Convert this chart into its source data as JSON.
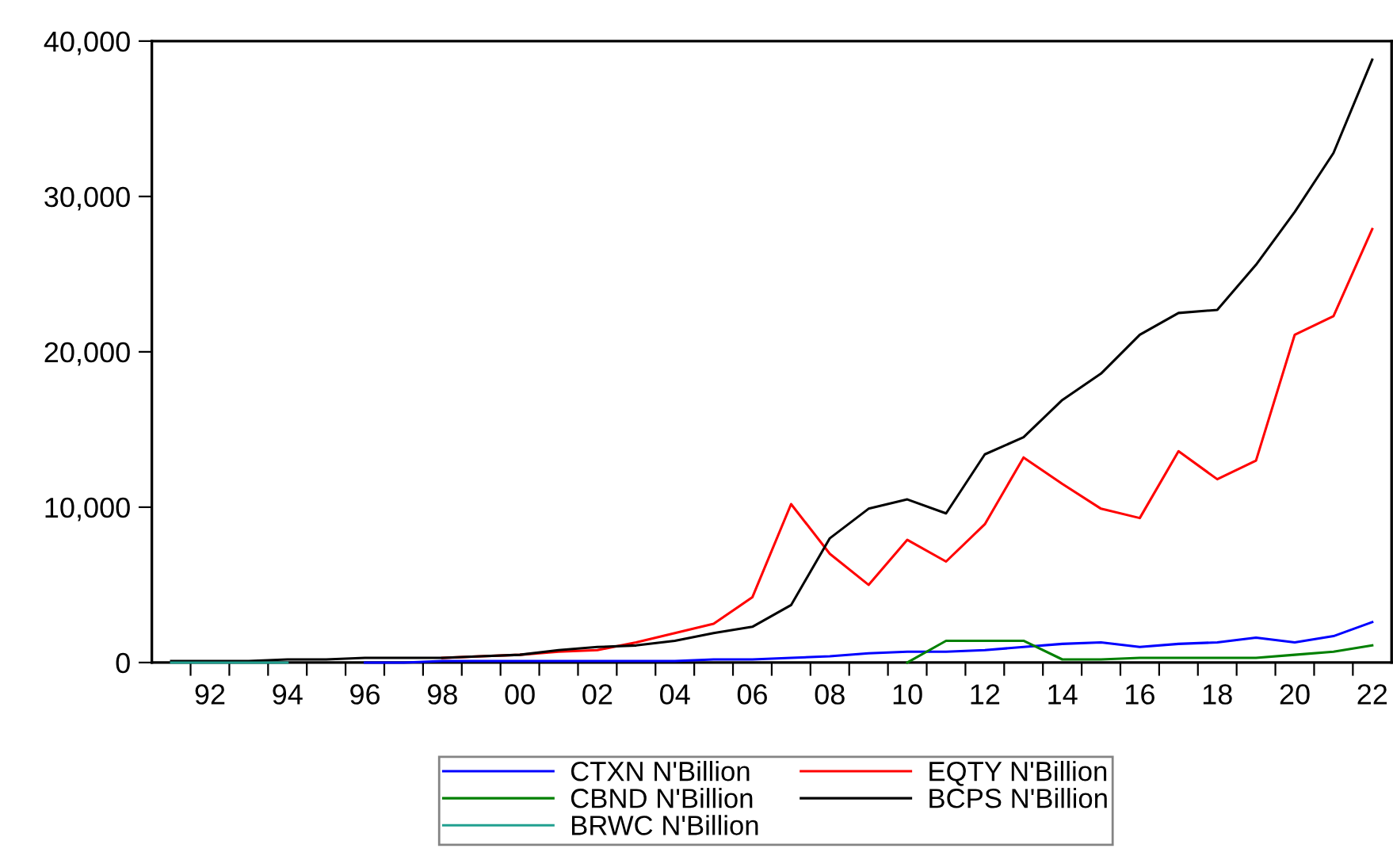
{
  "chart_data": {
    "type": "line",
    "x": [
      1991,
      1992,
      1993,
      1994,
      1995,
      1996,
      1997,
      1998,
      1999,
      2000,
      2001,
      2002,
      2003,
      2004,
      2005,
      2006,
      2007,
      2008,
      2009,
      2010,
      2011,
      2012,
      2013,
      2014,
      2015,
      2016,
      2017,
      2018,
      2019,
      2020,
      2021,
      2022
    ],
    "series": [
      {
        "name": "CTXN N'Billion",
        "color": "#0000ff",
        "values": [
          null,
          null,
          null,
          null,
          null,
          0,
          0,
          100,
          100,
          100,
          100,
          100,
          100,
          100,
          200,
          200,
          300,
          400,
          600,
          700,
          700,
          800,
          1000,
          1200,
          1300,
          1000,
          1200,
          1300,
          1600,
          1300,
          1700,
          2600
        ]
      },
      {
        "name": "EQTY N'Billion",
        "color": "#ff0000",
        "values": [
          null,
          null,
          null,
          null,
          null,
          null,
          null,
          300,
          400,
          500,
          700,
          800,
          1300,
          1900,
          2500,
          4200,
          10200,
          7000,
          5000,
          7900,
          6500,
          8900,
          13200,
          11500,
          9900,
          9300,
          13600,
          11800,
          13000,
          21100,
          22300,
          27900
        ]
      },
      {
        "name": "CBND N'Billion",
        "color": "#008000",
        "values": [
          null,
          null,
          null,
          null,
          null,
          null,
          null,
          null,
          null,
          null,
          null,
          null,
          null,
          null,
          null,
          null,
          null,
          null,
          null,
          0,
          1400,
          1400,
          1400,
          200,
          200,
          300,
          300,
          300,
          300,
          500,
          700,
          1100
        ]
      },
      {
        "name": "BCPS N'Billion",
        "color": "#000000",
        "values": [
          100,
          100,
          100,
          200,
          200,
          300,
          300,
          300,
          400,
          500,
          800,
          1000,
          1100,
          1400,
          1900,
          2300,
          3700,
          8000,
          9900,
          10500,
          9600,
          13400,
          14500,
          16900,
          18600,
          21100,
          22500,
          22700,
          25600,
          29000,
          32800,
          38800
        ]
      },
      {
        "name": "BRWC N'Billion",
        "color": "#20a090",
        "values": [
          0,
          0,
          0,
          0,
          null,
          null,
          null,
          null,
          null,
          null,
          null,
          null,
          null,
          null,
          null,
          null,
          null,
          null,
          null,
          null,
          null,
          null,
          null,
          null,
          null,
          null,
          null,
          null,
          null,
          null,
          null,
          null
        ]
      }
    ],
    "xlim": [
      1990.5,
      2022.5
    ],
    "xticks": [
      {
        "value": 1991.5,
        "label": null
      },
      {
        "value": 1992,
        "label": "92"
      },
      {
        "value": 1992.5,
        "label": null
      },
      {
        "value": 1993.5,
        "label": null
      },
      {
        "value": 1994,
        "label": "94"
      },
      {
        "value": 1994.5,
        "label": null
      },
      {
        "value": 1995.5,
        "label": null
      },
      {
        "value": 1996,
        "label": "96"
      },
      {
        "value": 1996.5,
        "label": null
      },
      {
        "value": 1997.5,
        "label": null
      },
      {
        "value": 1998,
        "label": "98"
      },
      {
        "value": 1998.5,
        "label": null
      },
      {
        "value": 1999.5,
        "label": null
      },
      {
        "value": 2000,
        "label": "00"
      },
      {
        "value": 2000.5,
        "label": null
      },
      {
        "value": 2001.5,
        "label": null
      },
      {
        "value": 2002,
        "label": "02"
      },
      {
        "value": 2002.5,
        "label": null
      },
      {
        "value": 2003.5,
        "label": null
      },
      {
        "value": 2004,
        "label": "04"
      },
      {
        "value": 2004.5,
        "label": null
      },
      {
        "value": 2005.5,
        "label": null
      },
      {
        "value": 2006,
        "label": "06"
      },
      {
        "value": 2006.5,
        "label": null
      },
      {
        "value": 2007.5,
        "label": null
      },
      {
        "value": 2008,
        "label": "08"
      },
      {
        "value": 2008.5,
        "label": null
      },
      {
        "value": 2009.5,
        "label": null
      },
      {
        "value": 2010,
        "label": "10"
      },
      {
        "value": 2010.5,
        "label": null
      },
      {
        "value": 2011.5,
        "label": null
      },
      {
        "value": 2012,
        "label": "12"
      },
      {
        "value": 2012.5,
        "label": null
      },
      {
        "value": 2013.5,
        "label": null
      },
      {
        "value": 2014,
        "label": "14"
      },
      {
        "value": 2014.5,
        "label": null
      },
      {
        "value": 2015.5,
        "label": null
      },
      {
        "value": 2016,
        "label": "16"
      },
      {
        "value": 2016.5,
        "label": null
      },
      {
        "value": 2017.5,
        "label": null
      },
      {
        "value": 2018,
        "label": "18"
      },
      {
        "value": 2018.5,
        "label": null
      },
      {
        "value": 2019.5,
        "label": null
      },
      {
        "value": 2020,
        "label": "20"
      },
      {
        "value": 2020.5,
        "label": null
      },
      {
        "value": 2021.5,
        "label": null
      },
      {
        "value": 2022,
        "label": "22"
      }
    ],
    "ylim": [
      0,
      40000
    ],
    "yticks": [
      0,
      {
        "value": 10000,
        "label": "10,000"
      },
      {
        "value": 20000,
        "label": "20,000"
      },
      {
        "value": 30000,
        "label": "30,000"
      },
      {
        "value": 40000,
        "label": "40,000"
      }
    ],
    "grid": false,
    "legend": "bottom",
    "marker": "none",
    "line_style": "solid"
  }
}
